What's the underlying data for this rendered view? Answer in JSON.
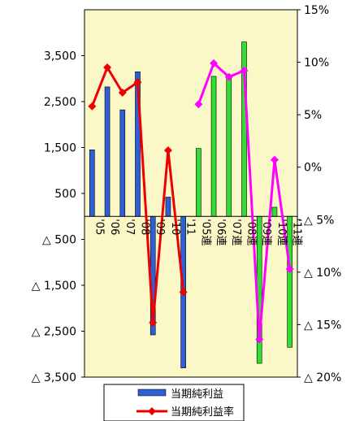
{
  "chart_data": {
    "type": "bar",
    "categories": [
      "'05",
      "'06",
      "'07",
      "'08",
      "'09",
      "'10",
      "'11",
      "'05連",
      "'06連",
      "'07連",
      "'08連",
      "'09連",
      "'10連",
      "'11連"
    ],
    "series": [
      {
        "name": "当期純利益",
        "type": "bar",
        "axis": "left",
        "values": [
          1450,
          2820,
          2320,
          3150,
          -2580,
          420,
          -3300,
          null,
          null,
          null,
          null,
          null,
          null,
          null
        ],
        "color": "#2f5fd6"
      },
      {
        "name": "当期純利益",
        "type": "bar",
        "axis": "left",
        "values": [
          null,
          null,
          null,
          null,
          null,
          null,
          null,
          1480,
          3050,
          3020,
          3800,
          -3200,
          200,
          -2850
        ],
        "color": "#33dd33"
      },
      {
        "name": "当期純利益率",
        "type": "line",
        "axis": "right",
        "values": [
          5.8,
          9.5,
          7.1,
          8.1,
          -14.8,
          1.6,
          -11.9,
          null,
          null,
          null,
          null,
          null,
          null,
          null
        ],
        "color": "#ee0000"
      },
      {
        "name": "当期純利益率",
        "type": "line",
        "axis": "right",
        "values": [
          null,
          null,
          null,
          null,
          null,
          null,
          null,
          6.0,
          9.9,
          8.6,
          9.2,
          -16.4,
          0.7,
          -9.7
        ],
        "color": "#ff00ff"
      }
    ],
    "left_axis": {
      "ylim": [
        -3500,
        4500
      ],
      "ticks": [
        -3500,
        -2500,
        -1500,
        -500,
        500,
        1500,
        2500,
        3500
      ],
      "tick_labels": [
        "△ 3,500",
        "△ 2,500",
        "△ 1,500",
        "△ 500",
        "500",
        "1,500",
        "2,500",
        "3,500"
      ]
    },
    "right_axis": {
      "ylim": [
        -20,
        15
      ],
      "ticks": [
        -20,
        -15,
        -10,
        -5,
        0,
        5,
        10,
        15
      ],
      "tick_labels": [
        "△ 20%",
        "△ 15%",
        "△ 10%",
        "△ 5%",
        "0%",
        "5%",
        "10%",
        "15%"
      ]
    },
    "plot_background": "#fbf8c8",
    "legend": {
      "position": "bottom",
      "entries": [
        {
          "label": "当期純利益",
          "color": "#2f5fd6"
        },
        {
          "label": "当期純利益率",
          "color": "#ee0000"
        }
      ]
    }
  }
}
